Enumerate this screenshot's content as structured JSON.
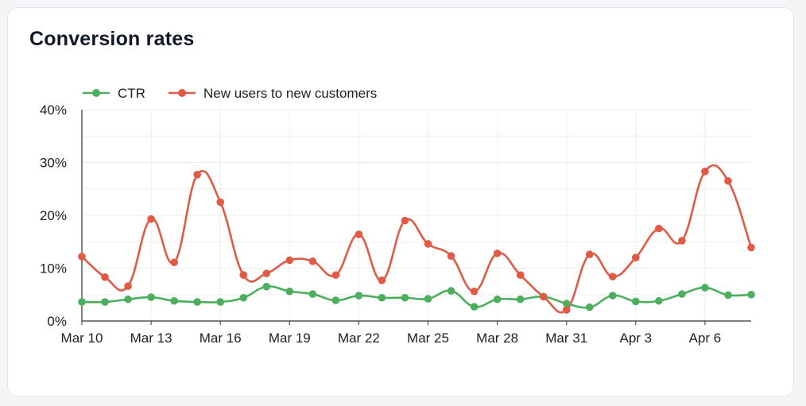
{
  "title": "Conversion rates",
  "chart_data": {
    "type": "line",
    "title": "Conversion rates",
    "xlabel": "",
    "ylabel": "",
    "ylim": [
      0,
      40
    ],
    "yticks": [
      0,
      10,
      20,
      30,
      40
    ],
    "ytick_labels": [
      "0%",
      "10%",
      "20%",
      "30%",
      "40%"
    ],
    "x": [
      "Mar 10",
      "Mar 11",
      "Mar 12",
      "Mar 13",
      "Mar 14",
      "Mar 15",
      "Mar 16",
      "Mar 17",
      "Mar 18",
      "Mar 19",
      "Mar 20",
      "Mar 21",
      "Mar 22",
      "Mar 23",
      "Mar 24",
      "Mar 25",
      "Mar 26",
      "Mar 27",
      "Mar 28",
      "Mar 29",
      "Mar 30",
      "Mar 31",
      "Apr 1",
      "Apr 2",
      "Apr 3",
      "Apr 4",
      "Apr 5",
      "Apr 6",
      "Apr 7",
      "Apr 8"
    ],
    "xtick_labels": [
      "Mar 10",
      "Mar 13",
      "Mar 16",
      "Mar 19",
      "Mar 22",
      "Mar 25",
      "Mar 28",
      "Mar 31",
      "Apr 3",
      "Apr 6"
    ],
    "legend_position": "top-left",
    "grid": true,
    "series": [
      {
        "name": "CTR",
        "color": "#4caf5d",
        "values": [
          3.6,
          3.6,
          4.1,
          4.5,
          3.8,
          3.6,
          3.6,
          4.4,
          6.5,
          5.6,
          5.1,
          3.9,
          4.8,
          4.4,
          4.4,
          4.2,
          5.7,
          2.7,
          4.1,
          4.1,
          4.6,
          3.3,
          2.6,
          4.8,
          3.7,
          3.8,
          5.1,
          6.3,
          4.9,
          5.0
        ]
      },
      {
        "name": "New users to new customers",
        "color": "#e05a46",
        "values": [
          12.2,
          8.3,
          6.6,
          19.3,
          11.1,
          27.7,
          22.5,
          8.7,
          9.0,
          11.5,
          11.3,
          8.7,
          16.4,
          7.7,
          19.0,
          14.6,
          12.3,
          5.6,
          12.8,
          8.7,
          4.6,
          2.1,
          12.6,
          8.4,
          12.0,
          17.5,
          15.2,
          28.3,
          26.5,
          13.9
        ]
      }
    ]
  }
}
